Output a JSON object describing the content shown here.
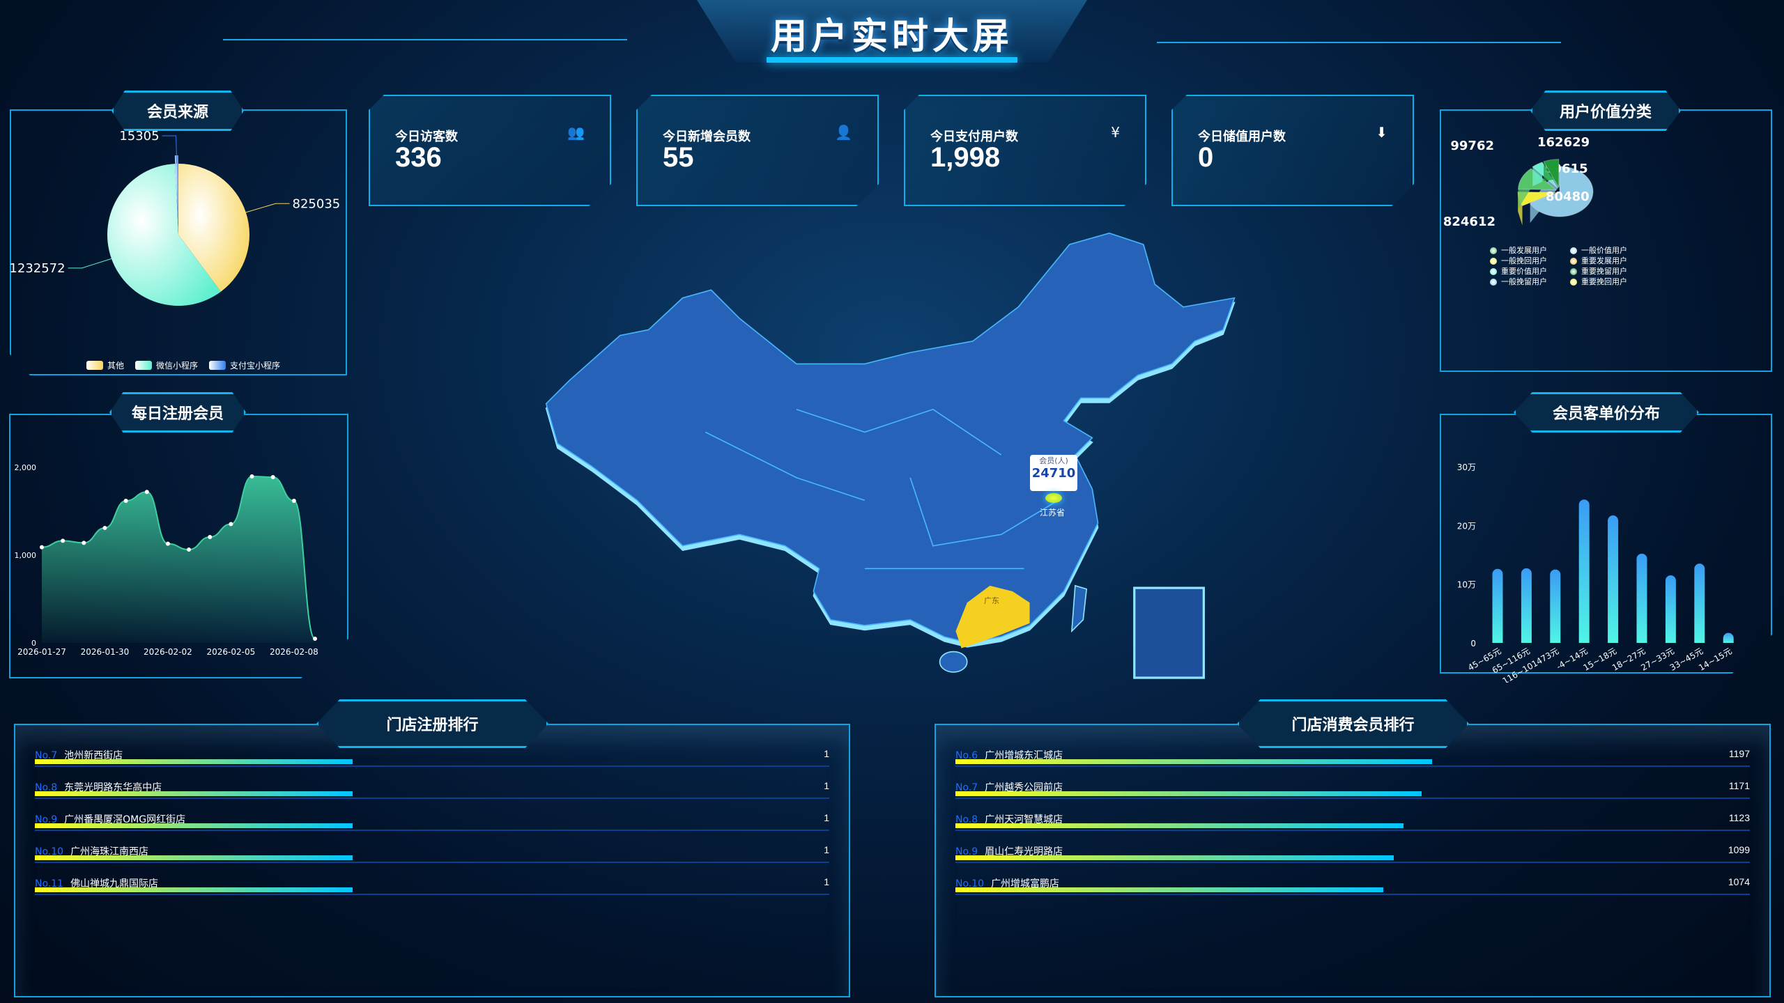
{
  "header": {
    "title": "用户实时大屏"
  },
  "kpis": [
    {
      "label": "今日访客数",
      "value": "336",
      "icon": "users-icon",
      "glyph": "👥"
    },
    {
      "label": "今日新增会员数",
      "value": "55",
      "icon": "user-add-icon",
      "glyph": "👤"
    },
    {
      "label": "今日支付用户数",
      "value": "1,998",
      "icon": "yen-coin-icon",
      "glyph": "¥"
    },
    {
      "label": "今日储值用户数",
      "value": "0",
      "icon": "yen-download-icon",
      "glyph": "⬇"
    }
  ],
  "member_source": {
    "title": "会员来源",
    "chart_data": {
      "type": "pie",
      "slices": [
        {
          "name": "其他",
          "value": 825035,
          "color": "#f7d45a"
        },
        {
          "name": "微信小程序",
          "value": 1232572,
          "color": "#5ef0cf"
        },
        {
          "name": "支付宝小程序",
          "value": 15305,
          "color": "#2f7cf0"
        }
      ],
      "legend": "bottom"
    }
  },
  "daily_register": {
    "title": "每日注册会员",
    "chart_data": {
      "type": "area",
      "ylim": [
        0,
        2000
      ],
      "yticks": [
        "0",
        "1,000",
        "2,000"
      ],
      "x": [
        "2026-01-27",
        "2026-01-28",
        "2026-01-29",
        "2026-01-30",
        "2026-01-31",
        "2026-02-01",
        "2026-02-02",
        "2026-02-03",
        "2026-02-04",
        "2026-02-05",
        "2026-02-06",
        "2026-02-07",
        "2026-02-08",
        "2026-02-09"
      ],
      "xticks": [
        "2026-01-27",
        "2026-01-30",
        "2026-02-02",
        "2026-02-05",
        "2026-02-08"
      ],
      "values": [
        1090,
        1164,
        1140,
        1310,
        1619,
        1720,
        1130,
        1063,
        1206,
        1354,
        1897,
        1889,
        1619,
        48
      ],
      "color": "#3ecfa0"
    }
  },
  "value_class": {
    "title": "用户价值分类",
    "chart_data": {
      "type": "pie",
      "style": "3d",
      "slices": [
        {
          "name": "一般挽留用户",
          "value": 824612,
          "color": "#8fc9e6"
        },
        {
          "name": "重要挽回用户",
          "value": 99762,
          "color": "#f2ec3a"
        },
        {
          "name": "一般发展用户",
          "value": 162629,
          "color": "#56c46a"
        },
        {
          "name": "重要价值用户",
          "value": 59615,
          "color": "#6ef0d0"
        },
        {
          "name": "重要挽留用户",
          "value": 80480,
          "color": "#1f9a36"
        }
      ],
      "legend_items": [
        {
          "name": "一般发展用户",
          "color": "#56c46a"
        },
        {
          "name": "一般价值用户",
          "color": "#a8d4ec"
        },
        {
          "name": "一般挽回用户",
          "color": "#f2ec3a"
        },
        {
          "name": "重要发展用户",
          "color": "#f0b030"
        },
        {
          "name": "重要价值用户",
          "color": "#6ef0d0"
        },
        {
          "name": "重要挽留用户",
          "color": "#2fa048"
        },
        {
          "name": "一般挽留用户",
          "color": "#8fc9e6"
        },
        {
          "name": "重要挽回用户",
          "color": "#f2ec3a"
        }
      ]
    }
  },
  "price_dist": {
    "title": "会员客单价分布",
    "chart_data": {
      "type": "bar",
      "ylim": [
        0,
        300000
      ],
      "yticks": [
        "0",
        "10万",
        "20万",
        "30万"
      ],
      "categories": [
        "45~65元",
        "65~116元",
        "116~101473元",
        "-4~14元",
        "15~18元",
        "18~27元",
        "27~33元",
        "33~45元",
        "14~15元"
      ],
      "values": [
        126000,
        127000,
        125000,
        244000,
        217000,
        152000,
        115000,
        135000,
        17000
      ]
    }
  },
  "map": {
    "tooltip_label": "会员(人)",
    "tooltip_value": "24710",
    "province": "江苏省",
    "highlight": "广东",
    "colors": {
      "land": "#2563b8",
      "highlight": "#f5d020"
    }
  },
  "store_register": {
    "title": "门店注册排行",
    "rows": [
      {
        "no": "No.7",
        "name": "池州新西街店",
        "value": "1",
        "pct": 40
      },
      {
        "no": "No.8",
        "name": "东莞光明路东华高中店",
        "value": "1",
        "pct": 40
      },
      {
        "no": "No.9",
        "name": "广州番禺厦滘OMG网红街店",
        "value": "1",
        "pct": 40
      },
      {
        "no": "No.10",
        "name": "广州海珠江南西店",
        "value": "1",
        "pct": 40
      },
      {
        "no": "No.11",
        "name": "佛山禅城九鼎国际店",
        "value": "1",
        "pct": 40
      }
    ]
  },
  "store_consume": {
    "title": "门店消费会员排行",
    "rows": [
      {
        "no": "No.6",
        "name": "广州增城东汇城店",
        "value": "1197",
        "pct": 60
      },
      {
        "no": "No.7",
        "name": "广州越秀公园前店",
        "value": "1171",
        "pct": 58.7
      },
      {
        "no": "No.8",
        "name": "广州天河智慧城店",
        "value": "1123",
        "pct": 56.4
      },
      {
        "no": "No.9",
        "name": "眉山仁寿光明路店",
        "value": "1099",
        "pct": 55.2
      },
      {
        "no": "No.10",
        "name": "广州增城富鹏店",
        "value": "1074",
        "pct": 53.9
      }
    ]
  }
}
